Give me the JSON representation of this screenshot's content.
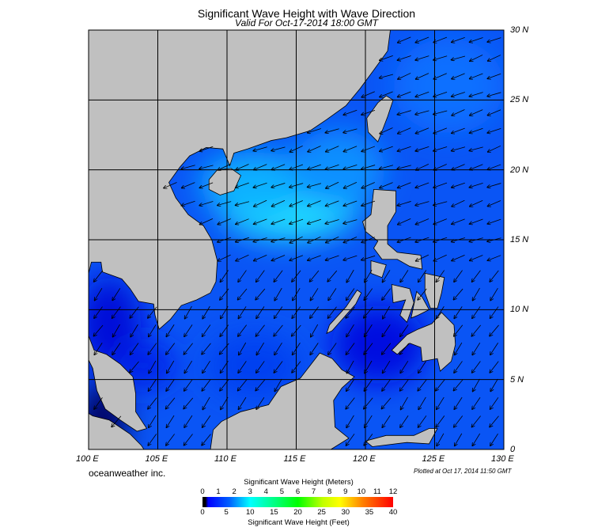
{
  "title": "Significant Wave Height with Wave Direction",
  "subtitle": "Valid For Oct-17-2014 18:00 GMT",
  "brand": "oceanweather inc.",
  "plotted": "Plotted at Oct 17, 2014 11:50 GMT",
  "map": {
    "lon_range": [
      100,
      130
    ],
    "lat_range": [
      0,
      30
    ],
    "lon_labels": [
      "100 E",
      "105 E",
      "110 E",
      "115 E",
      "120 E",
      "125 E",
      "130 E"
    ],
    "lat_labels": [
      "30 N",
      "25 N",
      "20 N",
      "15 N",
      "10 N",
      "5 N",
      "0"
    ],
    "land_color": "#c0c0c0",
    "grid_color": "#000000",
    "dominant_wave_direction": "from northeast"
  },
  "colorbar": {
    "meters_title": "Significant Wave Height (Meters)",
    "feet_title": "Significant Wave Height (Feet)",
    "meters_ticks": [
      "0",
      "1",
      "2",
      "3",
      "4",
      "5",
      "6",
      "7",
      "8",
      "9",
      "10",
      "11",
      "12"
    ],
    "feet_ticks": [
      "0",
      "5",
      "10",
      "15",
      "20",
      "25",
      "30",
      "35",
      "40"
    ],
    "colors": [
      "#000000",
      "#0000ff",
      "#0080ff",
      "#00ffff",
      "#00ff80",
      "#00ff00",
      "#c0ff00",
      "#ffff00",
      "#ff8000",
      "#ff0000"
    ]
  }
}
